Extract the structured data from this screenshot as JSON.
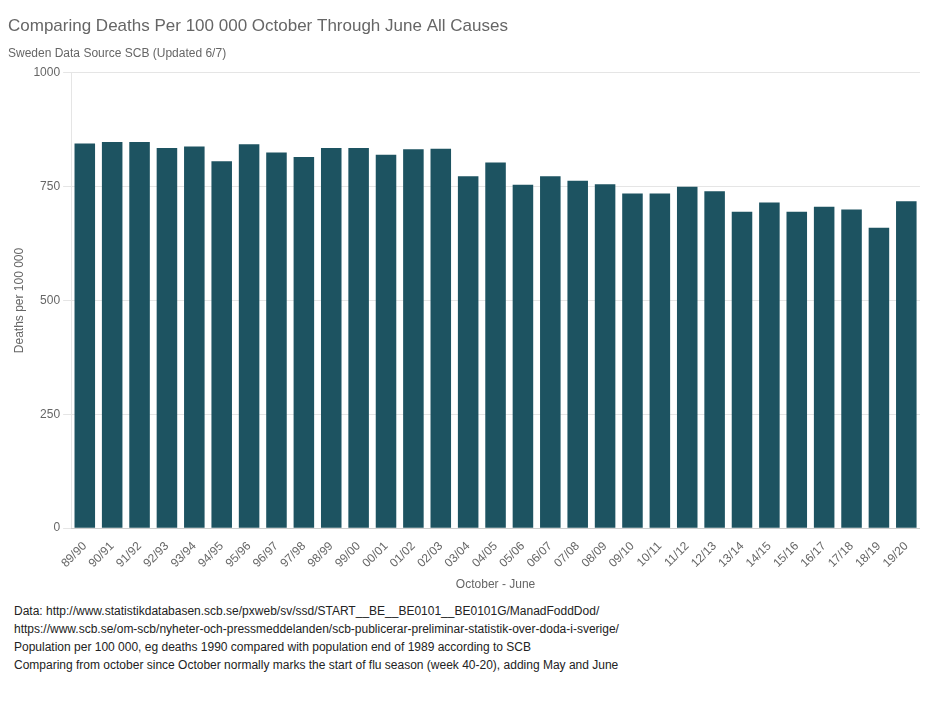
{
  "chart_data": {
    "type": "bar",
    "title": "Comparing Deaths Per 100 000 October Through June All Causes",
    "subtitle": "Sweden Data Source SCB (Updated 6/7)",
    "xlabel": "October - June",
    "ylabel": "Deaths per 100 000",
    "categories": [
      "89/90",
      "90/91",
      "91/92",
      "92/93",
      "93/94",
      "94/95",
      "95/96",
      "96/97",
      "97/98",
      "98/99",
      "99/00",
      "00/01",
      "01/02",
      "02/03",
      "03/04",
      "04/05",
      "05/06",
      "06/07",
      "07/08",
      "08/09",
      "09/10",
      "10/11",
      "11/12",
      "12/13",
      "13/14",
      "14/15",
      "15/16",
      "16/17",
      "17/18",
      "18/19",
      "19/20"
    ],
    "values": [
      845,
      848,
      848,
      835,
      838,
      806,
      843,
      825,
      815,
      835,
      835,
      820,
      832,
      833,
      773,
      803,
      754,
      773,
      763,
      755,
      735,
      735,
      750,
      740,
      695,
      715,
      695,
      706,
      700,
      660,
      718
    ],
    "color": "#1d5361",
    "ylim": [
      0,
      1000
    ],
    "yticks": [
      0,
      250,
      500,
      750,
      1000
    ],
    "grid": true,
    "annotations": [
      "Data: http://www.statistikdatabasen.scb.se/pxweb/sv/ssd/START__BE__BE0101__BE0101G/ManadFoddDod/",
      "https://www.scb.se/om-scb/nyheter-och-pressmeddelanden/scb-publicerar-preliminar-statistik-over-doda-i-sverige/",
      "Population per 100 000, eg deaths 1990 compared with population end of 1989 according to SCB",
      "Comparing from october since October normally marks the start of flu season (week 40-20), adding May and June"
    ]
  }
}
